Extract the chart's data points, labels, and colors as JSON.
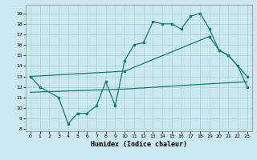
{
  "xlabel": "Humidex (Indice chaleur)",
  "bg_color": "#cbe8f0",
  "grid_color": "#a8d4cc",
  "line_color": "#1a7a6e",
  "xlim": [
    -0.5,
    23.5
  ],
  "ylim": [
    7.8,
    19.8
  ],
  "yticks": [
    8,
    9,
    10,
    11,
    12,
    13,
    14,
    15,
    16,
    17,
    18,
    19
  ],
  "xticks": [
    0,
    1,
    2,
    3,
    4,
    5,
    6,
    7,
    8,
    9,
    10,
    11,
    12,
    13,
    14,
    15,
    16,
    17,
    18,
    19,
    20,
    21,
    22,
    23
  ],
  "series1_x": [
    0,
    1,
    3,
    4,
    5,
    6,
    7,
    8,
    9,
    10,
    11,
    12,
    13,
    14,
    15,
    16,
    17,
    18,
    19,
    20,
    21,
    22,
    23
  ],
  "series1_y": [
    13.0,
    12.0,
    11.0,
    8.5,
    9.5,
    9.5,
    10.2,
    12.5,
    10.2,
    14.5,
    16.0,
    16.2,
    18.2,
    18.0,
    18.0,
    17.5,
    18.7,
    19.0,
    17.5,
    15.5,
    15.0,
    14.0,
    12.0
  ],
  "series2_x": [
    0,
    10,
    19,
    20,
    21,
    23
  ],
  "series2_y": [
    13.0,
    13.5,
    16.8,
    15.5,
    15.0,
    13.0
  ],
  "series3_x": [
    0,
    10,
    19,
    23
  ],
  "series3_y": [
    11.5,
    11.8,
    12.3,
    12.5
  ]
}
